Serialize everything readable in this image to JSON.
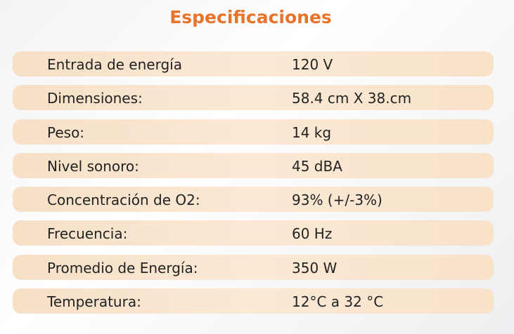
{
  "title": "Especificaciones",
  "table": {
    "rows": [
      [
        "Entrada de energía",
        "120 V"
      ],
      [
        "Dimensiones:",
        "58.4 cm X 38.cm"
      ],
      [
        "Peso:",
        "14 kg"
      ],
      [
        "Nivel sonoro:",
        "45 dBA"
      ],
      [
        "Concentración de O2:",
        "93% (+/-3%)"
      ],
      [
        "Frecuencia:",
        "60 Hz"
      ],
      [
        "Promedio de Energía:",
        "350 W"
      ],
      [
        "Temperatura:",
        "12°C a 32 °C"
      ]
    ]
  }
}
